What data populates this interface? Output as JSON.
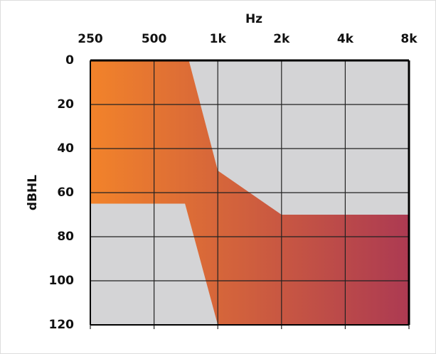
{
  "chart_data": {
    "type": "band",
    "x_label": "Hz",
    "y_label": "dBHL",
    "xscale": "log",
    "y_inverted": true,
    "grid": true,
    "xlim": [
      250,
      8000
    ],
    "ylim": [
      0,
      120
    ],
    "xticks": [
      250,
      500,
      {
        "value": 1000,
        "label": "1k"
      },
      {
        "value": 2000,
        "label": "2k"
      },
      {
        "value": 4000,
        "label": "4k"
      },
      {
        "value": 8000,
        "label": "8k"
      }
    ],
    "yticks": [
      0,
      20,
      40,
      60,
      80,
      100,
      120
    ],
    "gradient_colors": [
      "#f2832a",
      "#ac3a52"
    ],
    "background_color": "#d4d4d6",
    "upper": {
      "x": [
        250,
        730,
        1000,
        2000,
        8000
      ],
      "values": [
        0,
        0,
        50,
        70,
        70
      ]
    },
    "lower": {
      "x": [
        250,
        700,
        1000,
        8000
      ],
      "values": [
        65,
        65,
        120,
        120
      ]
    }
  }
}
